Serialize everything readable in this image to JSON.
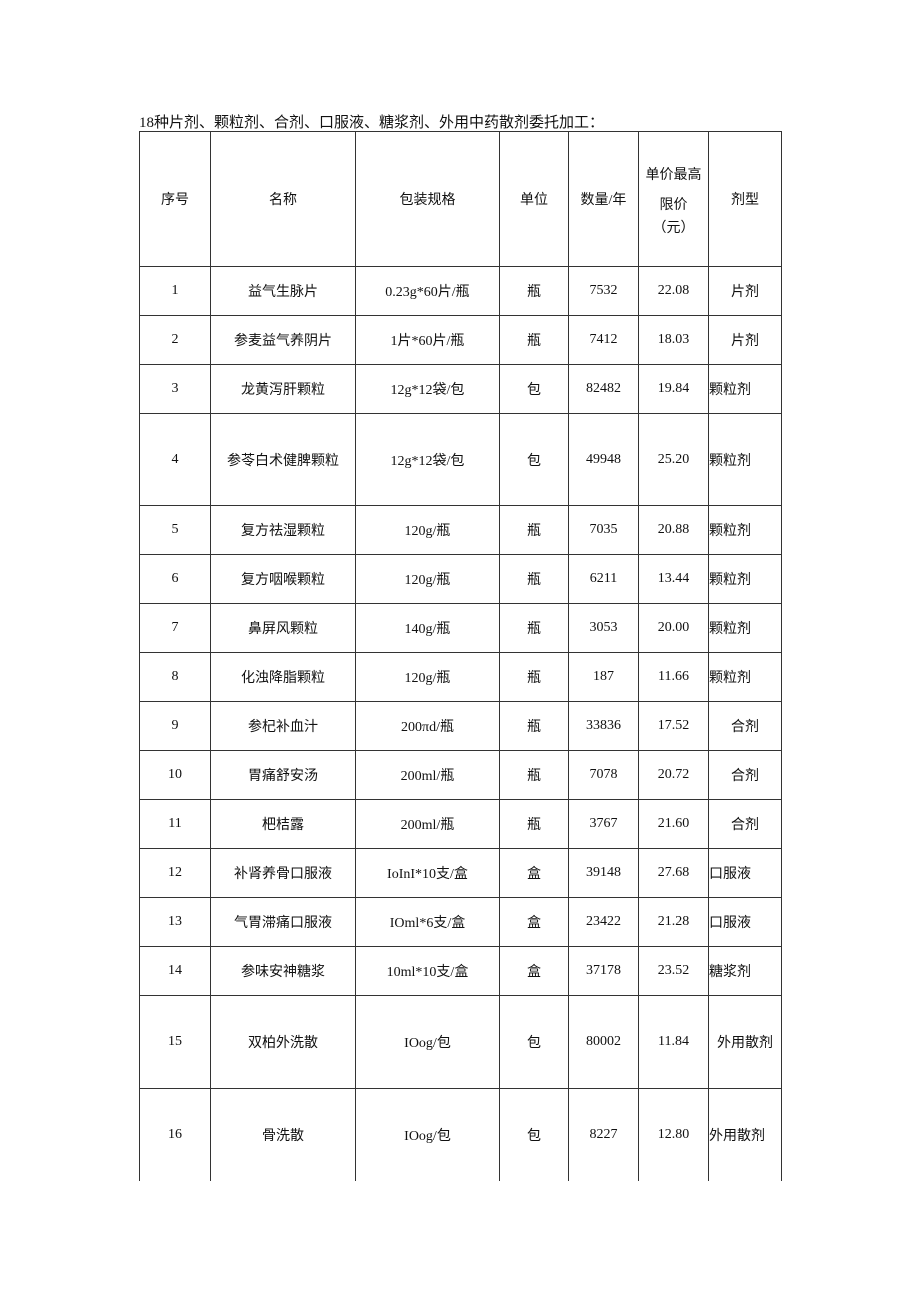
{
  "caption": "18种片剂、颗粒剂、合剂、口服液、糖浆剂、外用中药散剂委托加工：",
  "headers": {
    "index": "序号",
    "name": "名称",
    "spec": "包装规格",
    "unit": "单位",
    "quantity": "数量/年",
    "price_line1": "单价最高",
    "price_line2": "限价",
    "price_line3": "（元）",
    "form": "剂型"
  },
  "rows": [
    {
      "index": "1",
      "name": "益气生脉片",
      "spec": "0.23g*60片/瓶",
      "unit": "瓶",
      "quantity": "7532",
      "price": "22.08",
      "form": "片剂"
    },
    {
      "index": "2",
      "name": "参麦益气养阴片",
      "spec": "1片*60片/瓶",
      "unit": "瓶",
      "quantity": "7412",
      "price": "18.03",
      "form": "片剂"
    },
    {
      "index": "3",
      "name": "龙黄泻肝颗粒",
      "spec": "12g*12袋/包",
      "unit": "包",
      "quantity": "82482",
      "price": "19.84",
      "form": "颗粒剂"
    },
    {
      "index": "4",
      "name": "参苓白术健脾颗粒",
      "spec": "12g*12袋/包",
      "unit": "包",
      "quantity": "49948",
      "price": "25.20",
      "form": "颗粒剂"
    },
    {
      "index": "5",
      "name": "复方祛湿颗粒",
      "spec": "120g/瓶",
      "unit": "瓶",
      "quantity": "7035",
      "price": "20.88",
      "form": "颗粒剂"
    },
    {
      "index": "6",
      "name": "复方咽喉颗粒",
      "spec": "120g/瓶",
      "unit": "瓶",
      "quantity": "6211",
      "price": "13.44",
      "form": "颗粒剂"
    },
    {
      "index": "7",
      "name": "鼻屏风颗粒",
      "spec": "140g/瓶",
      "unit": "瓶",
      "quantity": "3053",
      "price": "20.00",
      "form": "颗粒剂"
    },
    {
      "index": "8",
      "name": "化浊降脂颗粒",
      "spec": "120g/瓶",
      "unit": "瓶",
      "quantity": "187",
      "price": "11.66",
      "form": "颗粒剂"
    },
    {
      "index": "9",
      "name": "参杞补血汁",
      "spec": "200πd/瓶",
      "unit": "瓶",
      "quantity": "33836",
      "price": "17.52",
      "form": "合剂"
    },
    {
      "index": "10",
      "name": "胃痛舒安汤",
      "spec": "200ml/瓶",
      "unit": "瓶",
      "quantity": "7078",
      "price": "20.72",
      "form": "合剂"
    },
    {
      "index": "11",
      "name": "杷桔露",
      "spec": "200ml/瓶",
      "unit": "瓶",
      "quantity": "3767",
      "price": "21.60",
      "form": "合剂"
    },
    {
      "index": "12",
      "name": "补肾养骨口服液",
      "spec": "IoInI*10支/盒",
      "unit": "盒",
      "quantity": "39148",
      "price": "27.68",
      "form": "口服液"
    },
    {
      "index": "13",
      "name": "气胃滞痛口服液",
      "spec": "IOml*6支/盒",
      "unit": "盒",
      "quantity": "23422",
      "price": "21.28",
      "form": "口服液"
    },
    {
      "index": "14",
      "name": "参味安神糖浆",
      "spec": "10ml*10支/盒",
      "unit": "盒",
      "quantity": "37178",
      "price": "23.52",
      "form": "糖浆剂"
    },
    {
      "index": "15",
      "name": "双柏外洗散",
      "spec": "IOog/包",
      "unit": "包",
      "quantity": "80002",
      "price": "11.84",
      "form": "外用散剂"
    },
    {
      "index": "16",
      "name": "骨洗散",
      "spec": "IOog/包",
      "unit": "包",
      "quantity": "8227",
      "price": "12.80",
      "form": "外用散剂"
    }
  ]
}
